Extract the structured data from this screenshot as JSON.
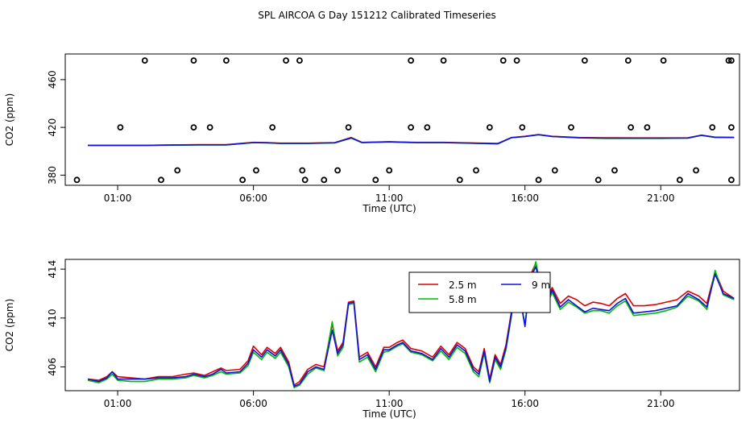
{
  "title": "SPL AIRCOA G  Day 151212  Calibrated Timeseries",
  "colors": {
    "s25": "#e00000",
    "s58": "#00bb00",
    "s9": "#1010e0",
    "axis": "#000000"
  },
  "chart_data": [
    {
      "type": "line",
      "xlabel": "Time (UTC)",
      "ylabel": "CO2 (ppm)",
      "xlim": [
        -0.93,
        23.9
      ],
      "ylim": [
        371.5,
        481.5
      ],
      "xticks": [
        1,
        6,
        11,
        16,
        21
      ],
      "xtick_labels": [
        "01:00",
        "06:00",
        "11:00",
        "16:00",
        "21:00"
      ],
      "yticks": [
        380,
        420,
        460
      ],
      "ytick_labels": [
        "380",
        "420",
        "460"
      ],
      "series": [
        {
          "name": "2.5 m",
          "color": "#e00000",
          "x": [
            -0.1,
            1.0,
            2.0,
            3.0,
            4.0,
            5.0,
            6.0,
            6.5,
            7.0,
            8.0,
            9.0,
            9.6,
            10.0,
            11.0,
            12.0,
            13.0,
            14.0,
            15.0,
            15.5,
            16.0,
            16.5,
            17.0,
            18.0,
            19.0,
            20.0,
            21.0,
            22.0,
            22.5,
            23.0,
            23.7
          ],
          "y": [
            405,
            405,
            405,
            405.3,
            405.5,
            405.5,
            407.5,
            407.3,
            406.8,
            406.8,
            407.3,
            411.5,
            407.5,
            408.0,
            407.5,
            407.5,
            407.0,
            406.5,
            411.5,
            412.5,
            414,
            412.5,
            411.5,
            411.3,
            411.2,
            411.2,
            411.3,
            413.5,
            411.8,
            411.6
          ]
        },
        {
          "name": "5.8 m",
          "color": "#00bb00",
          "x": [
            -0.1,
            1.0,
            2.0,
            3.0,
            4.0,
            5.0,
            6.0,
            6.5,
            7.0,
            8.0,
            9.0,
            9.6,
            10.0,
            11.0,
            12.0,
            13.0,
            14.0,
            15.0,
            15.5,
            16.0,
            16.5,
            17.0,
            18.0,
            19.0,
            20.0,
            21.0,
            22.0,
            22.5,
            23.0,
            23.7
          ],
          "y": [
            404.9,
            404.9,
            404.9,
            405.1,
            405.3,
            405.3,
            407.2,
            407.0,
            406.5,
            406.5,
            407.0,
            411.0,
            407.2,
            407.8,
            407.2,
            407.2,
            406.7,
            406.2,
            411.3,
            412.3,
            413.8,
            412.3,
            411.2,
            410.8,
            410.8,
            410.8,
            411.0,
            413.3,
            411.6,
            411.5
          ]
        },
        {
          "name": "9 m",
          "color": "#1010e0",
          "x": [
            -0.1,
            1.0,
            2.0,
            3.0,
            4.0,
            5.0,
            6.0,
            6.5,
            7.0,
            8.0,
            9.0,
            9.6,
            10.0,
            11.0,
            12.0,
            13.0,
            14.0,
            15.0,
            15.5,
            16.0,
            16.5,
            17.0,
            18.0,
            19.0,
            20.0,
            21.0,
            22.0,
            22.5,
            23.0,
            23.7
          ],
          "y": [
            405,
            405,
            405,
            405.2,
            405.4,
            405.4,
            407.3,
            407.1,
            406.6,
            406.6,
            407.1,
            411.2,
            407.3,
            407.9,
            407.3,
            407.3,
            406.8,
            406.3,
            411.4,
            412.4,
            413.9,
            412.4,
            411.3,
            411.0,
            411.0,
            411.0,
            411.1,
            413.4,
            411.7,
            411.5
          ]
        }
      ],
      "points": {
        "x": [
          -0.5,
          1.1,
          2.0,
          2.6,
          3.2,
          3.8,
          3.8,
          4.4,
          5.0,
          5.6,
          6.1,
          6.7,
          7.2,
          7.7,
          7.8,
          7.9,
          8.6,
          9.1,
          9.5,
          10.5,
          11.0,
          11.8,
          11.8,
          12.4,
          13.0,
          13.6,
          14.2,
          14.7,
          15.2,
          15.7,
          15.9,
          16.5,
          17.1,
          17.7,
          18.2,
          18.7,
          19.3,
          19.8,
          19.9,
          20.5,
          21.1,
          21.7,
          22.3,
          22.9,
          23.5,
          23.6,
          23.6,
          23.6
        ],
        "y": [
          376,
          420,
          476,
          376,
          384,
          420,
          476,
          420,
          476,
          376,
          384,
          420,
          476,
          476,
          384,
          376,
          376,
          384,
          420,
          376,
          384,
          476,
          420,
          420,
          476,
          376,
          384,
          420,
          476,
          476,
          420,
          376,
          384,
          420,
          476,
          376,
          384,
          476,
          420,
          420,
          476,
          376,
          384,
          420,
          476,
          476,
          420,
          376
        ]
      }
    },
    {
      "type": "line",
      "xlabel": "Time (UTC)",
      "ylabel": "CO2 (ppm)",
      "xlim": [
        -0.93,
        23.9
      ],
      "ylim": [
        404.05,
        414.8
      ],
      "xticks": [
        1,
        6,
        11,
        16,
        21
      ],
      "xtick_labels": [
        "01:00",
        "06:00",
        "11:00",
        "16:00",
        "21:00"
      ],
      "yticks": [
        406,
        410,
        414
      ],
      "ytick_labels": [
        "406",
        "410",
        "414"
      ],
      "legend": {
        "entries": [
          "2.5 m",
          "5.8 m",
          "9 m"
        ],
        "position": "top-center"
      },
      "series": [
        {
          "name": "2.5 m",
          "color": "#e00000",
          "x": [
            -0.1,
            0.3,
            0.6,
            0.8,
            1.0,
            1.5,
            2.0,
            2.5,
            3.0,
            3.5,
            3.8,
            4.2,
            4.5,
            4.8,
            5.0,
            5.5,
            5.8,
            6.0,
            6.3,
            6.5,
            6.8,
            7.0,
            7.3,
            7.5,
            7.7,
            8.0,
            8.3,
            8.6,
            8.9,
            9.1,
            9.3,
            9.5,
            9.7,
            9.9,
            10.2,
            10.5,
            10.8,
            11.0,
            11.3,
            11.5,
            11.8,
            12.2,
            12.6,
            12.9,
            13.2,
            13.5,
            13.8,
            14.1,
            14.3,
            14.5,
            14.7,
            14.9,
            15.1,
            15.3,
            15.5,
            15.6,
            15.8,
            16.0,
            16.2,
            16.4,
            16.6,
            16.8,
            17.0,
            17.3,
            17.6,
            17.9,
            18.2,
            18.5,
            18.8,
            19.1,
            19.4,
            19.7,
            20.0,
            20.4,
            20.8,
            21.2,
            21.6,
            22.0,
            22.4,
            22.7,
            23.0,
            23.3,
            23.7
          ],
          "y": [
            405,
            404.9,
            405.2,
            405.6,
            405.2,
            405.1,
            405.0,
            405.2,
            405.2,
            405.4,
            405.5,
            405.3,
            405.6,
            405.9,
            405.7,
            405.8,
            406.5,
            407.7,
            407.0,
            407.6,
            407.1,
            407.6,
            406.4,
            404.5,
            404.8,
            405.8,
            406.2,
            406.0,
            409.5,
            407.3,
            408.0,
            411.3,
            411.4,
            406.8,
            407.2,
            406.0,
            407.6,
            407.6,
            408.0,
            408.2,
            407.5,
            407.3,
            406.8,
            407.7,
            407.0,
            408.0,
            407.5,
            406.0,
            405.6,
            407.5,
            405.0,
            407.0,
            406.2,
            407.8,
            410.5,
            412.0,
            412.3,
            412.2,
            413.5,
            414.5,
            412.5,
            411.5,
            412.5,
            411.2,
            411.8,
            411.5,
            411.0,
            411.3,
            411.2,
            411.0,
            411.6,
            412.0,
            411.0,
            411.0,
            411.1,
            411.3,
            411.5,
            412.2,
            411.8,
            411.2,
            413.8,
            412.2,
            411.6
          ]
        },
        {
          "name": "5.8 m",
          "color": "#00bb00",
          "x": [
            -0.1,
            0.3,
            0.6,
            0.8,
            1.0,
            1.5,
            2.0,
            2.5,
            3.0,
            3.5,
            3.8,
            4.2,
            4.5,
            4.8,
            5.0,
            5.5,
            5.8,
            6.0,
            6.3,
            6.5,
            6.8,
            7.0,
            7.3,
            7.5,
            7.7,
            8.0,
            8.3,
            8.6,
            8.9,
            9.1,
            9.3,
            9.5,
            9.7,
            9.9,
            10.2,
            10.5,
            10.8,
            11.0,
            11.3,
            11.5,
            11.8,
            12.2,
            12.6,
            12.9,
            13.2,
            13.5,
            13.8,
            14.1,
            14.3,
            14.5,
            14.7,
            14.9,
            15.1,
            15.3,
            15.5,
            15.6,
            15.8,
            16.0,
            16.2,
            16.4,
            16.6,
            16.8,
            17.0,
            17.3,
            17.6,
            17.9,
            18.2,
            18.5,
            18.8,
            19.1,
            19.4,
            19.7,
            20.0,
            20.4,
            20.8,
            21.2,
            21.6,
            22.0,
            22.4,
            22.7,
            23.0,
            23.3,
            23.7
          ],
          "y": [
            404.9,
            404.7,
            405.0,
            405.4,
            404.9,
            404.8,
            404.8,
            405.0,
            405.0,
            405.1,
            405.3,
            405.1,
            405.3,
            405.6,
            405.4,
            405.5,
            406.1,
            407.2,
            406.6,
            407.2,
            406.7,
            407.2,
            406.0,
            404.3,
            404.5,
            405.4,
            405.9,
            405.7,
            409.7,
            406.9,
            407.6,
            411.1,
            411.2,
            406.4,
            406.8,
            405.6,
            407.2,
            407.3,
            407.7,
            407.9,
            407.2,
            407.0,
            406.5,
            407.3,
            406.6,
            407.6,
            407.1,
            405.6,
            405.2,
            407.1,
            404.7,
            406.6,
            405.8,
            407.4,
            410.1,
            411.6,
            411.8,
            409.5,
            413.0,
            414.6,
            412.1,
            411.0,
            412.1,
            410.7,
            411.3,
            410.9,
            410.4,
            410.6,
            410.6,
            410.4,
            411.0,
            411.4,
            410.2,
            410.3,
            410.4,
            410.6,
            410.9,
            411.8,
            411.4,
            410.7,
            413.9,
            411.9,
            411.5
          ]
        },
        {
          "name": "9 m",
          "color": "#1010e0",
          "x": [
            -0.1,
            0.3,
            0.6,
            0.8,
            1.0,
            1.5,
            2.0,
            2.5,
            3.0,
            3.5,
            3.8,
            4.2,
            4.5,
            4.8,
            5.0,
            5.5,
            5.8,
            6.0,
            6.3,
            6.5,
            6.8,
            7.0,
            7.3,
            7.5,
            7.7,
            8.0,
            8.3,
            8.6,
            8.9,
            9.1,
            9.3,
            9.5,
            9.7,
            9.9,
            10.2,
            10.5,
            10.8,
            11.0,
            11.3,
            11.5,
            11.8,
            12.2,
            12.6,
            12.9,
            13.2,
            13.5,
            13.8,
            14.1,
            14.3,
            14.5,
            14.7,
            14.9,
            15.1,
            15.3,
            15.5,
            15.6,
            15.8,
            16.0,
            16.2,
            16.4,
            16.6,
            16.8,
            17.0,
            17.3,
            17.6,
            17.9,
            18.2,
            18.5,
            18.8,
            19.1,
            19.4,
            19.7,
            20.0,
            20.4,
            20.8,
            21.2,
            21.6,
            22.0,
            22.4,
            22.7,
            23.0,
            23.3,
            23.7
          ],
          "y": [
            405,
            404.8,
            405.1,
            405.6,
            405.0,
            405.0,
            405.0,
            405.1,
            405.1,
            405.2,
            405.4,
            405.2,
            405.4,
            405.8,
            405.5,
            405.6,
            406.3,
            407.4,
            406.8,
            407.4,
            406.9,
            407.4,
            406.2,
            404.4,
            404.6,
            405.6,
            406.0,
            405.8,
            409.0,
            407.1,
            407.8,
            411.2,
            411.3,
            406.6,
            407.0,
            405.8,
            407.4,
            407.4,
            407.8,
            408.0,
            407.3,
            407.1,
            406.6,
            407.5,
            406.8,
            407.8,
            407.3,
            405.8,
            405.4,
            407.3,
            404.8,
            406.8,
            406.0,
            407.6,
            410.3,
            412.8,
            411.9,
            409.3,
            413.3,
            414.2,
            412.3,
            411.2,
            412.3,
            410.9,
            411.5,
            411.0,
            410.5,
            410.8,
            410.7,
            410.6,
            411.2,
            411.6,
            410.4,
            410.5,
            410.6,
            410.8,
            411.0,
            412.0,
            411.5,
            410.9,
            413.6,
            412.0,
            411.6
          ]
        }
      ]
    }
  ]
}
